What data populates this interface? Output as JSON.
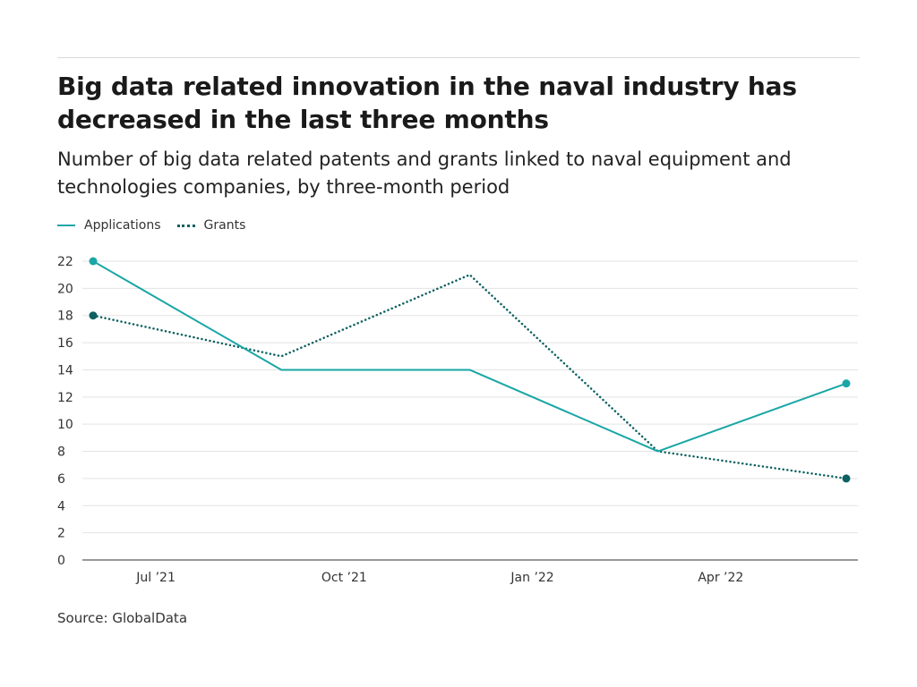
{
  "header": {
    "title": "Big data related innovation in the naval industry has decreased in the last three months",
    "subtitle": "Number of big data related patents and grants linked to naval equipment and technologies companies, by three-month period"
  },
  "legend": {
    "items": [
      {
        "label": "Applications",
        "color": "#1aa6a6",
        "style": "solid"
      },
      {
        "label": "Grants",
        "color": "#0e6161",
        "style": "dotted"
      }
    ]
  },
  "footer": {
    "source": "Source: GlobalData"
  },
  "chart_data": {
    "type": "line",
    "title": "Big data related innovation in the naval industry has decreased in the last three months",
    "subtitle": "Number of big data related patents and grants linked to naval equipment and technologies companies, by three-month period",
    "xlabel": "",
    "ylabel": "",
    "x": [
      "2021-06",
      "2021-09",
      "2021-12",
      "2022-03",
      "2022-06"
    ],
    "x_tick_labels": [
      "Jul ’21",
      "Oct ’21",
      "Jan ’22",
      "Apr ’22"
    ],
    "x_tick_dates": [
      "2021-07",
      "2021-10",
      "2022-01",
      "2022-04"
    ],
    "ylim": [
      0,
      22
    ],
    "y_ticks": [
      0,
      2,
      4,
      6,
      8,
      10,
      12,
      14,
      16,
      18,
      20,
      22
    ],
    "grid": true,
    "legend_position": "top-left",
    "series": [
      {
        "name": "Applications",
        "values": [
          22,
          14,
          14,
          8,
          13
        ],
        "color": "#1aa6a6",
        "style": "solid"
      },
      {
        "name": "Grants",
        "values": [
          18,
          15,
          21,
          8,
          6
        ],
        "color": "#0e6161",
        "style": "dotted"
      }
    ]
  }
}
